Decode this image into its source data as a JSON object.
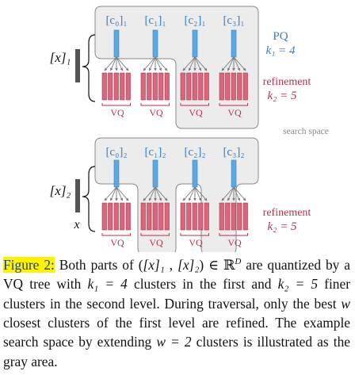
{
  "level1": {
    "input_label": "[x]₁",
    "centroids": [
      "[c₀]₁",
      "[c₁]₁",
      "[c₂]₁",
      "[c₃]₁"
    ],
    "pq_label": "PQ",
    "k_label": "k₁ = 4",
    "refinement_label": "refinement",
    "k2_label": "k₂ = 5",
    "vq_labels": [
      "VQ",
      "VQ",
      "VQ",
      "VQ"
    ],
    "search_space_label": "search space"
  },
  "level2": {
    "input_label": "[x]₂",
    "x_label": "x",
    "centroids": [
      "[c₀]₂",
      "[c₁]₂",
      "[c₂]₂",
      "[c₃]₂"
    ],
    "refinement_label": "refinement",
    "k2_label": "k₂ = 5",
    "vq_labels": [
      "VQ",
      "VQ",
      "VQ",
      "VQ"
    ]
  },
  "caption": {
    "figure_label": "Figure 2:",
    "t1": " Both parts of (",
    "t2": "[x]₁",
    "t3": " , ",
    "t4": "[x]₂",
    "t5": ") ∈ ℝ",
    "t6": "D",
    "t7": " are quantized by a VQ tree with ",
    "t8": "k₁ = 4",
    "t9": " clusters in the first and ",
    "t10": "k₂ = 5",
    "t11": " finer clusters in the second level. During traversal, only the best ",
    "t12": "w",
    "t13": " closest clusters of the first level are refined. The example search space by extending ",
    "t14": "w = 2",
    "t15": " clusters is illustrated as the gray area."
  },
  "colors": {
    "blue": "#5aa9e0",
    "blue_text": "#3b7fc4",
    "red": "#d9667a",
    "red_text": "#b5314d",
    "gray_region": "#ececec",
    "input_bar": "#555555"
  }
}
